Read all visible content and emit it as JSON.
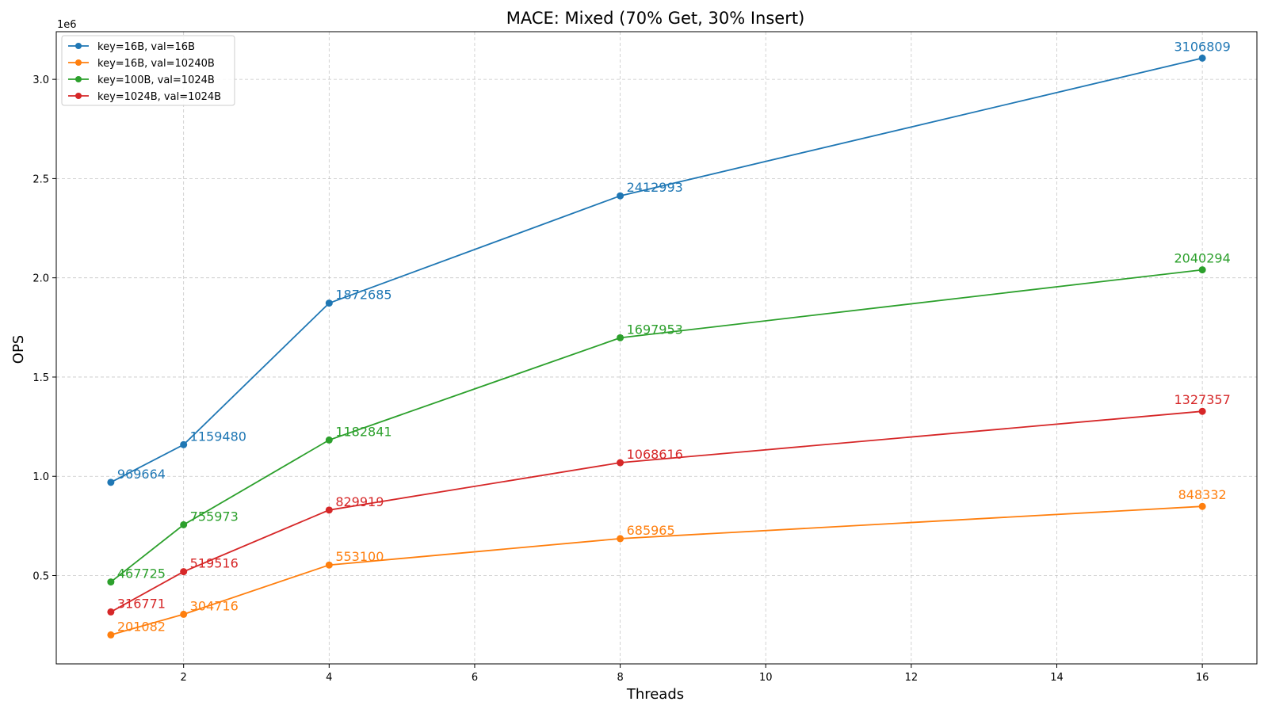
{
  "chart_data": {
    "type": "line",
    "title": "MACE: Mixed (70% Get, 30% Insert)",
    "xlabel": "Threads",
    "ylabel": "OPS",
    "y_scale_label": "1e6",
    "x": [
      1,
      2,
      4,
      8,
      16
    ],
    "xlim": [
      0.25,
      16.75
    ],
    "ylim": [
      0.055,
      3.24
    ],
    "y_unit_multiplier": 1000000,
    "x_ticks": [
      2,
      4,
      6,
      8,
      10,
      12,
      14,
      16
    ],
    "y_ticks": [
      0.5,
      1.0,
      1.5,
      2.0,
      2.5,
      3.0
    ],
    "y_tick_labels": [
      "0.5",
      "1.0",
      "1.5",
      "2.0",
      "2.5",
      "3.0"
    ],
    "grid": true,
    "legend_position": "top-left",
    "series": [
      {
        "name": "key=16B, val=16B",
        "color": "#1f77b4",
        "values": [
          969664,
          1159480,
          1872685,
          2412993,
          3106809
        ],
        "labels": [
          "969664",
          "1159480",
          "1872685",
          "2412993",
          "3106809"
        ]
      },
      {
        "name": "key=16B, val=10240B",
        "color": "#ff7f0e",
        "values": [
          201082,
          304716,
          553100,
          685965,
          848332
        ],
        "labels": [
          "201082",
          "304716",
          "553100",
          "685965",
          "848332"
        ]
      },
      {
        "name": "key=100B, val=1024B",
        "color": "#2ca02c",
        "values": [
          467725,
          755973,
          1182841,
          1697953,
          2040294
        ],
        "labels": [
          "467725",
          "755973",
          "1182841",
          "1697953",
          "2040294"
        ]
      },
      {
        "name": "key=1024B, val=1024B",
        "color": "#d62728",
        "values": [
          316771,
          519516,
          829919,
          1068616,
          1327357
        ],
        "labels": [
          "316771",
          "519516",
          "829919",
          "1068616",
          "1327357"
        ]
      }
    ]
  }
}
